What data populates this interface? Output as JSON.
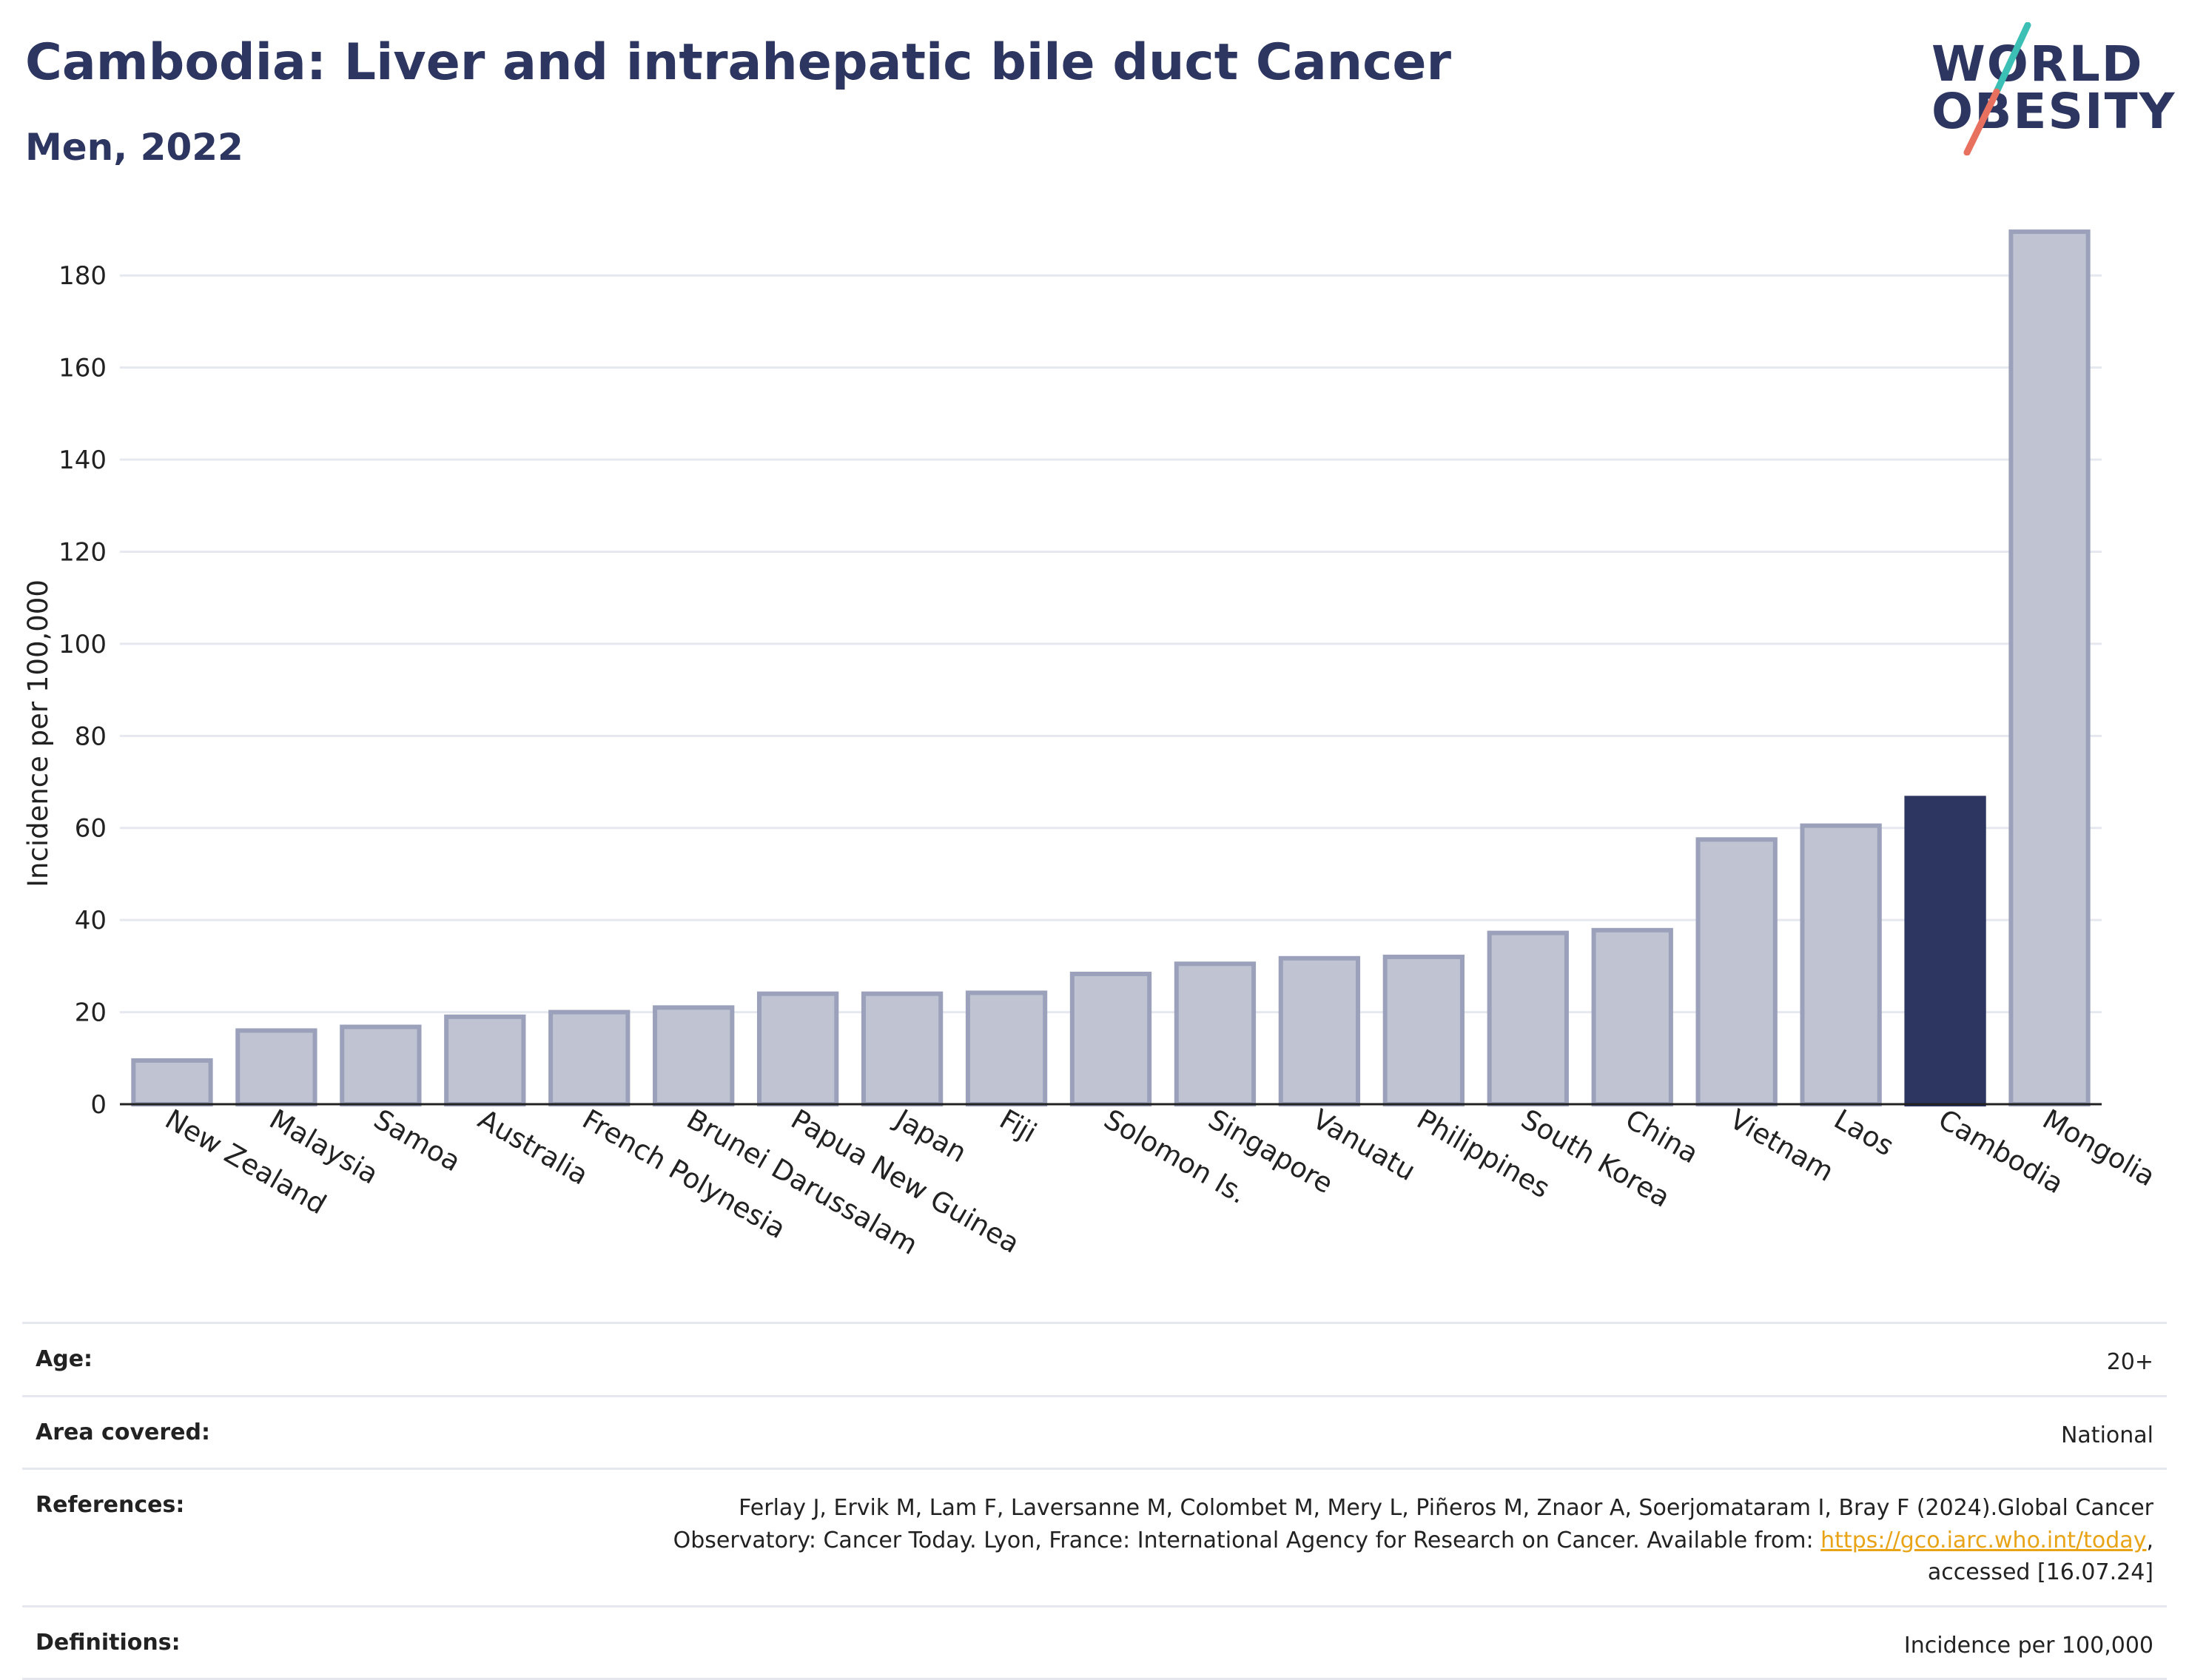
{
  "header": {
    "title": "Cambodia: Liver and intrahepatic bile duct Cancer",
    "subtitle": "Men, 2022"
  },
  "logo": {
    "line1": "WORLD",
    "line2": "OBESITY",
    "slash_colors": [
      "#3cbfb4",
      "#e8705f"
    ]
  },
  "colors": {
    "bar_default": "#bfc3d2",
    "bar_default_stroke": "#9ba1ba",
    "bar_highlight": "#2d3661",
    "title": "#2d3661",
    "grid": "#e6e8f0",
    "link": "#e8a317"
  },
  "chart_data": {
    "type": "bar",
    "title": "",
    "xlabel": "",
    "ylabel": "Incidence per 100,000",
    "ylim": [
      0,
      190
    ],
    "yticks": [
      0,
      20,
      40,
      60,
      80,
      100,
      120,
      140,
      160,
      180
    ],
    "grid": true,
    "highlight": "Cambodia",
    "categories": [
      "New Zealand",
      "Malaysia",
      "Samoa",
      "Australia",
      "French Polynesia",
      "Brunei Darussalam",
      "Papua New Guinea",
      "Japan",
      "Fiji",
      "Solomon Is.",
      "Singapore",
      "Vanuatu",
      "Philippines",
      "South Korea",
      "China",
      "Vietnam",
      "Laos",
      "Cambodia",
      "Mongolia"
    ],
    "values": [
      9.5,
      16,
      16.8,
      19,
      20,
      21,
      24,
      24,
      24.2,
      28.3,
      30.5,
      31.7,
      32,
      37.2,
      37.8,
      57.5,
      60.5,
      66.5,
      189.5
    ]
  },
  "meta": {
    "rows": [
      {
        "label": "Age:",
        "value": "20+"
      },
      {
        "label": "Area covered:",
        "value": "National"
      },
      {
        "label": "References:",
        "value_before": "Ferlay J, Ervik M, Lam F, Laversanne M, Colombet M, Mery L, Piñeros M, Znaor A, Soerjomataram I, Bray F (2024).Global Cancer Observatory: Cancer Today. Lyon, France: International Agency for Research on Cancer. Available from: ",
        "link": "https://gco.iarc.who.int/today",
        "value_after": ", accessed [16.07.24]"
      },
      {
        "label": "Definitions:",
        "value": "Incidence per 100,000"
      }
    ]
  }
}
